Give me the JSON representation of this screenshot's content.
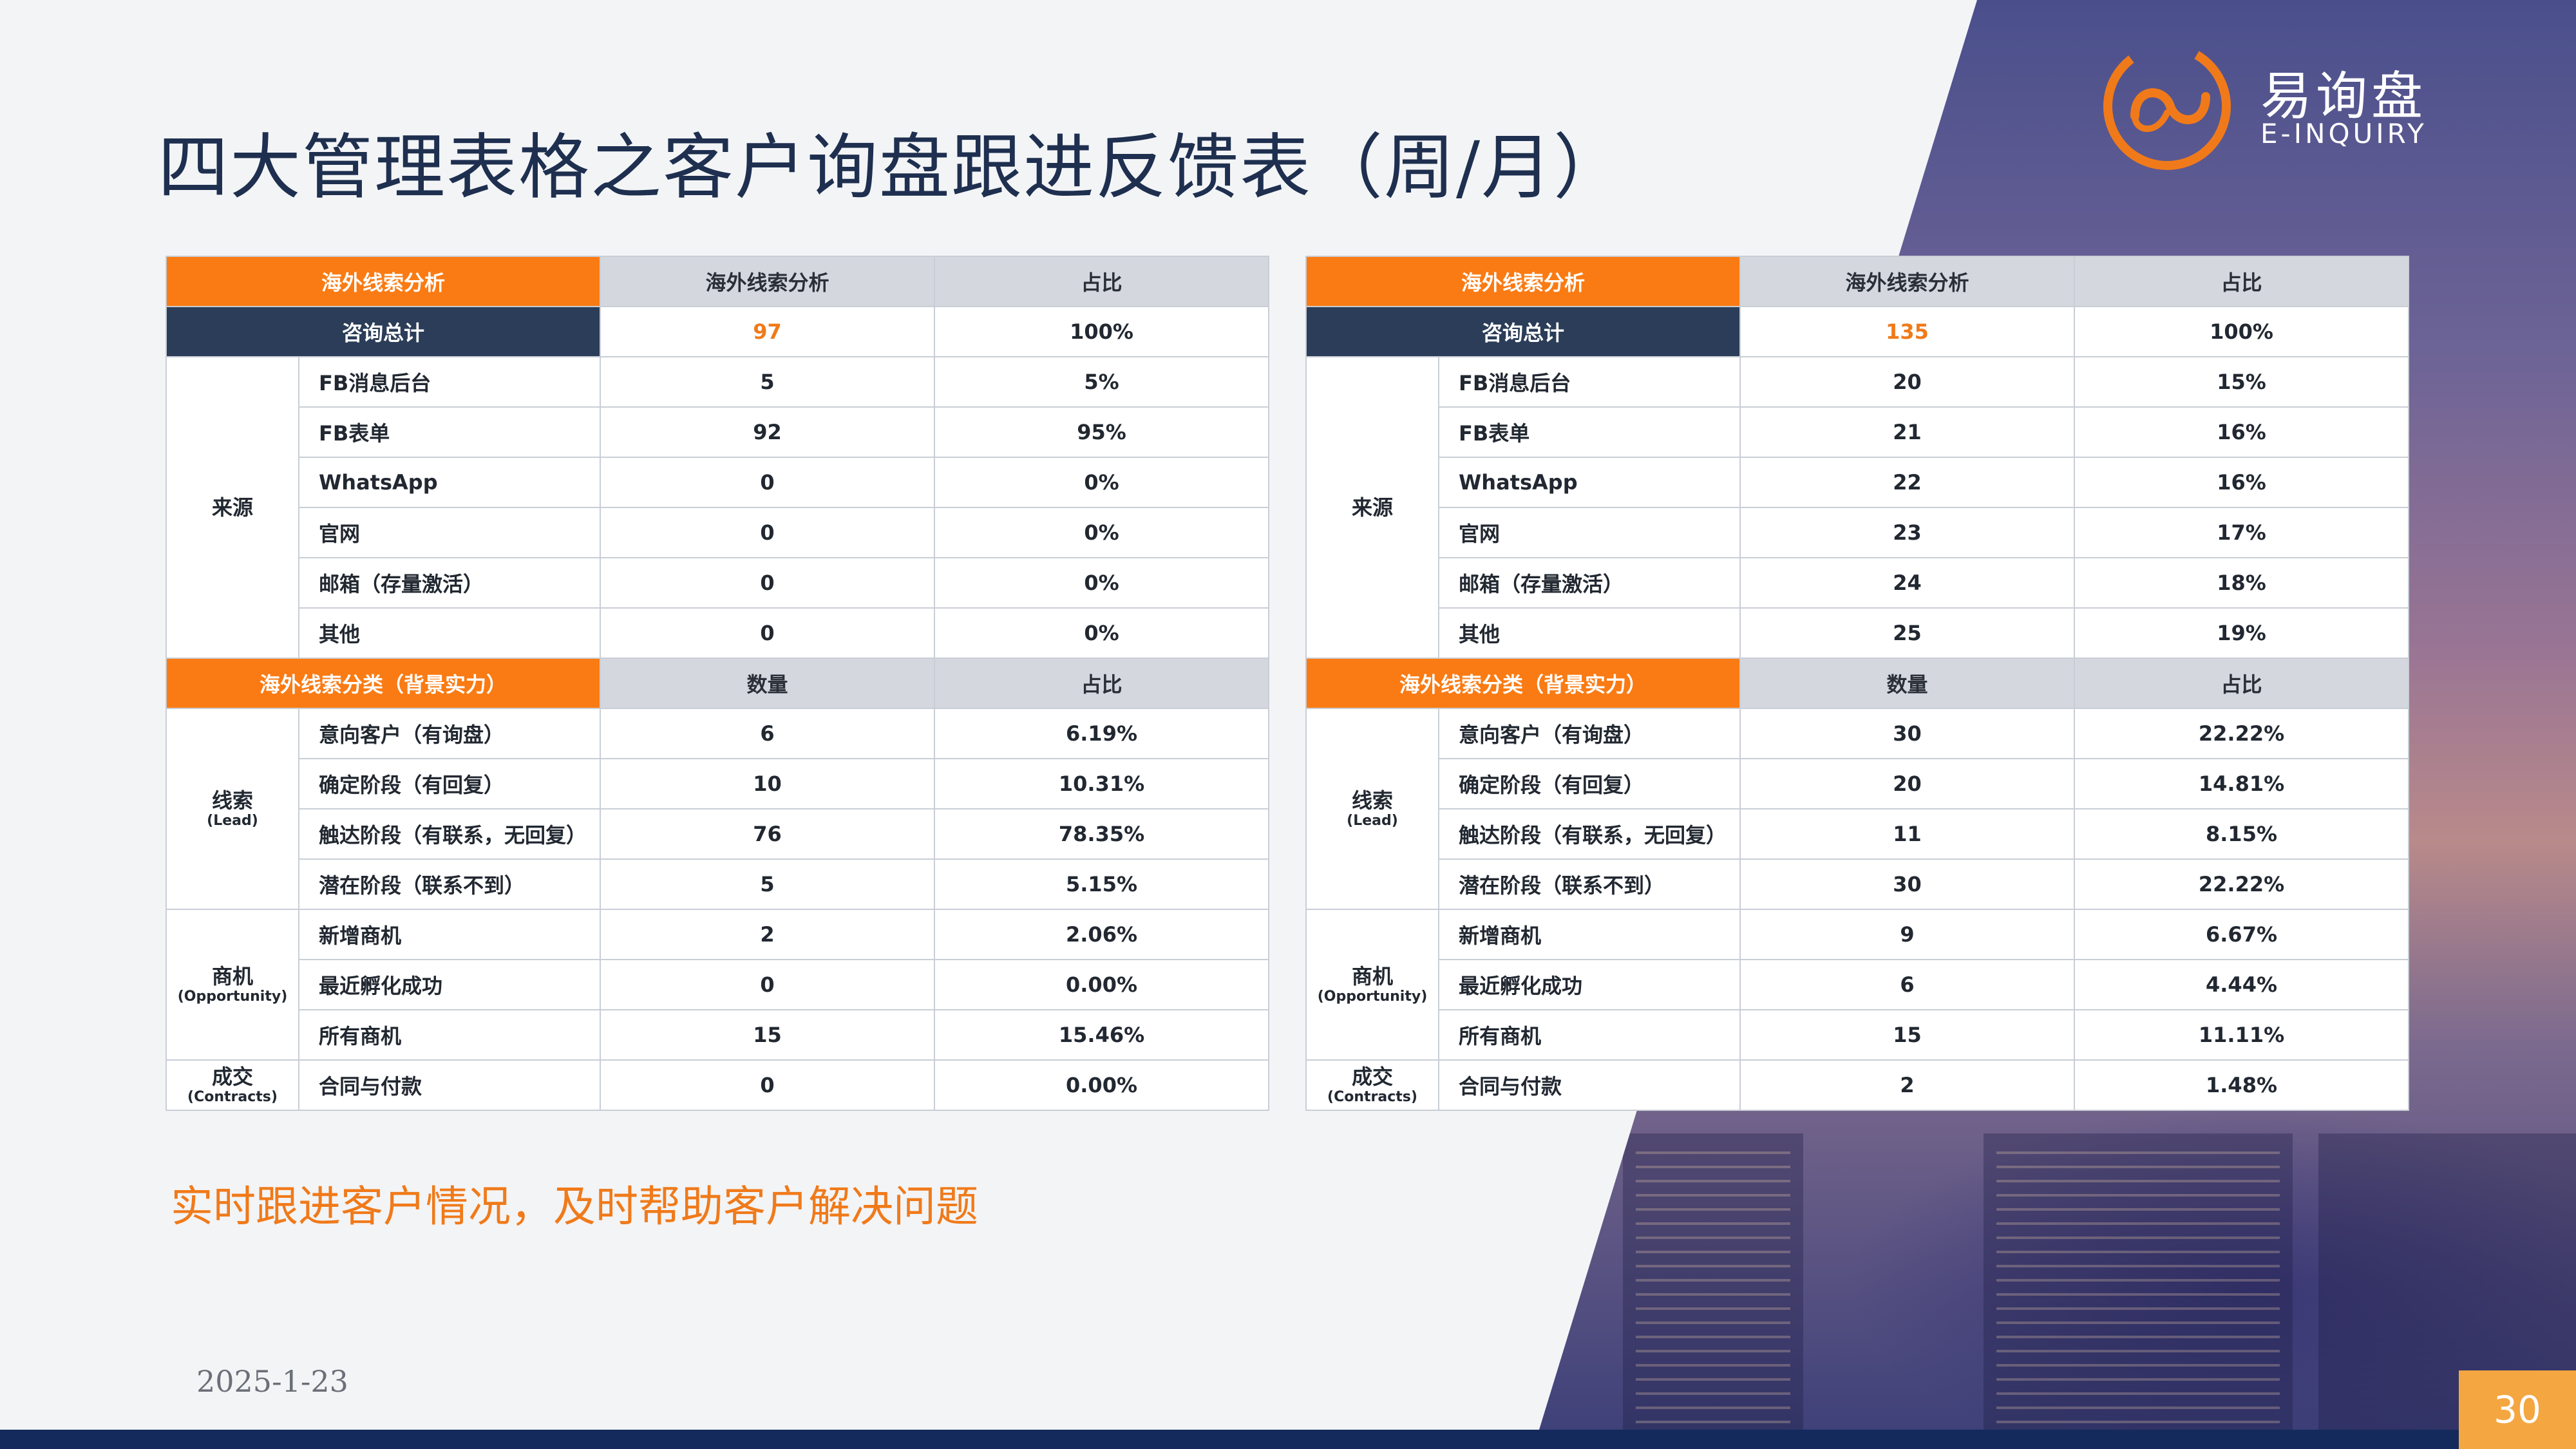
{
  "title": "四大管理表格之客户询盘跟进反馈表（周/月）",
  "logo": {
    "name_cn": "易询盘",
    "name_en": "E-INQUIRY"
  },
  "colors": {
    "accent_orange": "#fa7b13",
    "navy": "#2b3d58",
    "header_gray": "#d4d8de",
    "title_blue": "#1e2f4f"
  },
  "headers": {
    "col1": "海外线索分析",
    "col2": "海外线索分析",
    "col3": "占比",
    "total_label": "咨询总计",
    "section2_label": "海外线索分类（背景实力）",
    "section2_col2": "数量",
    "section2_col3": "占比"
  },
  "groups": {
    "source": "来源",
    "lead": "线索",
    "lead_en": "(Lead)",
    "opportunity": "商机",
    "opportunity_en": "(Opportunity)",
    "contracts": "成交",
    "contracts_en": "(Contracts)"
  },
  "row_labels": {
    "fb_msg": "FB消息后台",
    "fb_form": "FB表单",
    "whatsapp": "WhatsApp",
    "website": "官网",
    "email": "邮箱（存量激活）",
    "other": "其他",
    "intent": "意向客户（有询盘）",
    "confirmed": "确定阶段（有回复）",
    "reached": "触达阶段（有联系，无回复）",
    "potential": "潜在阶段（联系不到）",
    "new_opp": "新增商机",
    "incubated": "最近孵化成功",
    "all_opp": "所有商机",
    "contract_pay": "合同与付款"
  },
  "tables": [
    {
      "total": {
        "count": "97",
        "pct": "100%"
      },
      "fb_msg": {
        "count": "5",
        "pct": "5%"
      },
      "fb_form": {
        "count": "92",
        "pct": "95%"
      },
      "whatsapp": {
        "count": "0",
        "pct": "0%"
      },
      "website": {
        "count": "0",
        "pct": "0%"
      },
      "email": {
        "count": "0",
        "pct": "0%"
      },
      "other": {
        "count": "0",
        "pct": "0%"
      },
      "intent": {
        "count": "6",
        "pct": "6.19%"
      },
      "confirmed": {
        "count": "10",
        "pct": "10.31%"
      },
      "reached": {
        "count": "76",
        "pct": "78.35%"
      },
      "potential": {
        "count": "5",
        "pct": "5.15%"
      },
      "new_opp": {
        "count": "2",
        "pct": "2.06%"
      },
      "incubated": {
        "count": "0",
        "pct": "0.00%"
      },
      "all_opp": {
        "count": "15",
        "pct": "15.46%"
      },
      "contract_pay": {
        "count": "0",
        "pct": "0.00%"
      }
    },
    {
      "total": {
        "count": "135",
        "pct": "100%"
      },
      "fb_msg": {
        "count": "20",
        "pct": "15%"
      },
      "fb_form": {
        "count": "21",
        "pct": "16%"
      },
      "whatsapp": {
        "count": "22",
        "pct": "16%"
      },
      "website": {
        "count": "23",
        "pct": "17%"
      },
      "email": {
        "count": "24",
        "pct": "18%"
      },
      "other": {
        "count": "25",
        "pct": "19%"
      },
      "intent": {
        "count": "30",
        "pct": "22.22%"
      },
      "confirmed": {
        "count": "20",
        "pct": "14.81%"
      },
      "reached": {
        "count": "11",
        "pct": "8.15%"
      },
      "potential": {
        "count": "30",
        "pct": "22.22%"
      },
      "new_opp": {
        "count": "9",
        "pct": "6.67%"
      },
      "incubated": {
        "count": "6",
        "pct": "4.44%"
      },
      "all_opp": {
        "count": "15",
        "pct": "11.11%"
      },
      "contract_pay": {
        "count": "2",
        "pct": "1.48%"
      }
    }
  ],
  "footer_note": "实时跟进客户情况，及时帮助客户解决问题",
  "date": "2025-1-23",
  "page_number": "30"
}
